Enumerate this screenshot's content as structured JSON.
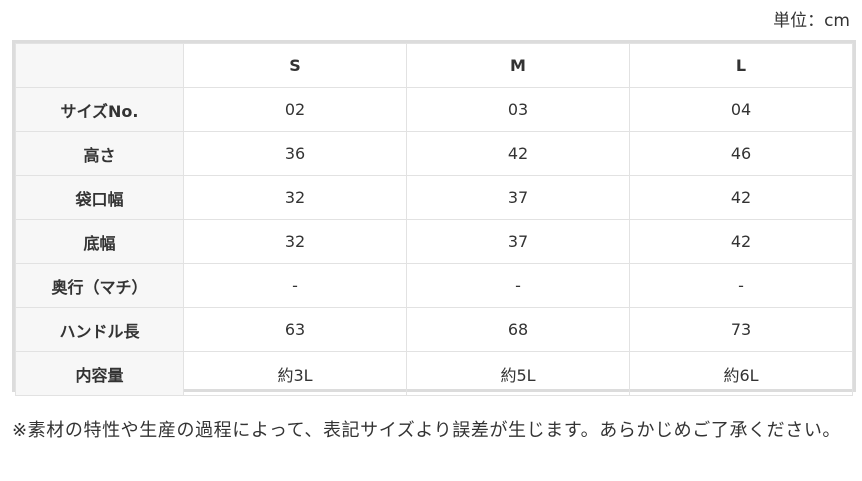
{
  "unit": "単位：cm",
  "table": {
    "columns": [
      "S",
      "M",
      "L"
    ],
    "rows": [
      {
        "label": "サイズNo.",
        "values": [
          "02",
          "03",
          "04"
        ]
      },
      {
        "label": "高さ",
        "values": [
          "36",
          "42",
          "46"
        ]
      },
      {
        "label": "袋口幅",
        "values": [
          "32",
          "37",
          "42"
        ]
      },
      {
        "label": "底幅",
        "values": [
          "32",
          "37",
          "42"
        ]
      },
      {
        "label": "奥行（マチ）",
        "values": [
          "-",
          "-",
          "-"
        ]
      },
      {
        "label": "ハンドル長",
        "values": [
          "63",
          "68",
          "73"
        ]
      },
      {
        "label": "内容量",
        "values": [
          "約3L",
          "約5L",
          "約6L"
        ]
      }
    ]
  },
  "note": "※素材の特性や生産の過程によって、表記サイズより誤差が生じます。あらかじめご了承ください。"
}
